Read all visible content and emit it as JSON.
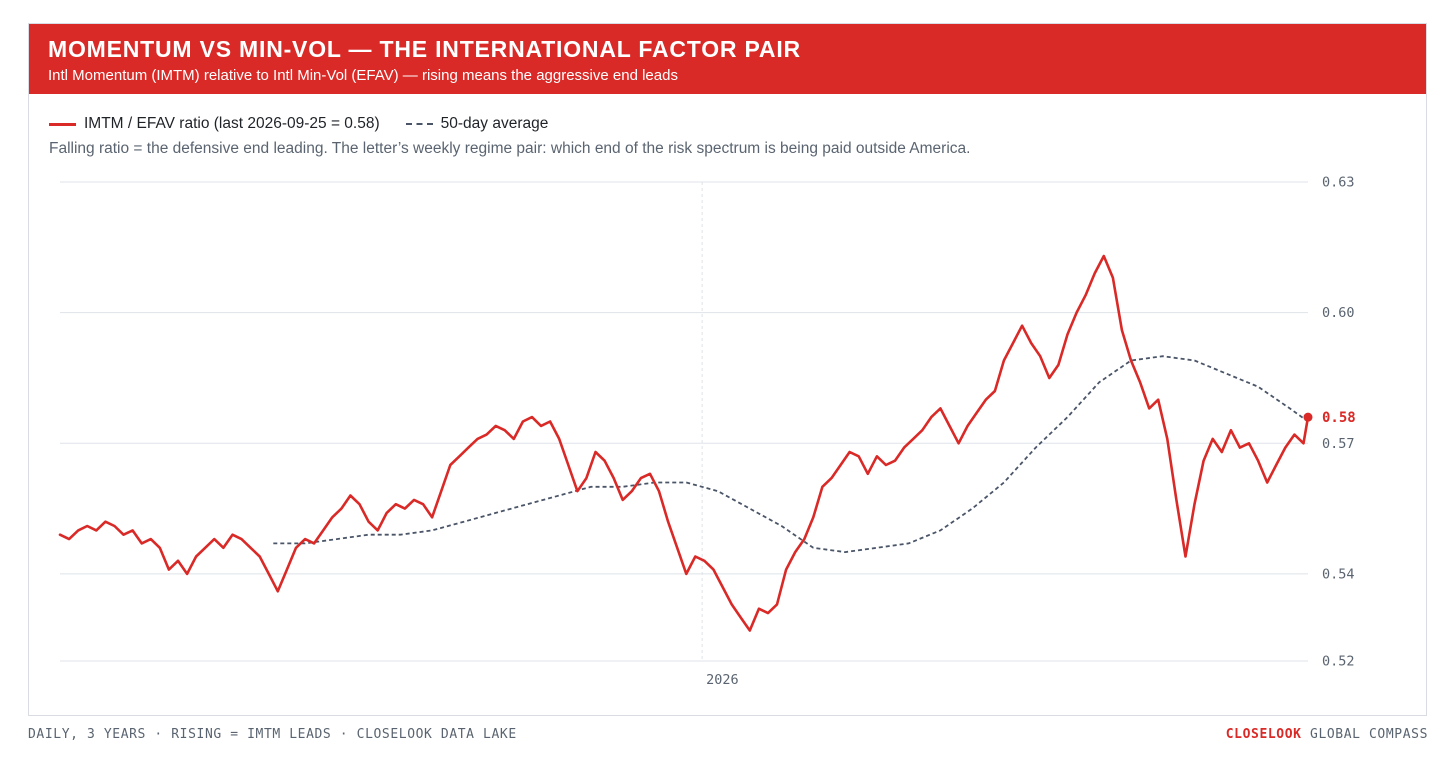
{
  "header": {
    "title": "MOMENTUM VS MIN-VOL — THE INTERNATIONAL FACTOR PAIR",
    "subtitle": "Intl Momentum (IMTM) relative to Intl Min-Vol (EFAV) — rising means the aggressive end leads"
  },
  "legend": {
    "ratio_label": "IMTM / EFAV ratio (last 2026-09-25 = 0.58)",
    "avg_label": "50-day average"
  },
  "note": "Falling ratio = the defensive end leading. The letter’s weekly regime pair: which end of the risk spectrum is being paid outside America.",
  "footer": {
    "left": "DAILY, 3 YEARS · RISING = IMTM LEADS · CLOSELOOK DATA LAKE",
    "brand": "CLOSELOOK",
    "right_rest": " GLOBAL COMPASS"
  },
  "colors": {
    "accent": "#d92a27",
    "average": "#4a5568",
    "grid": "#dfe3e8",
    "axis_text": "#5a6470"
  },
  "chart_data": {
    "type": "line",
    "title": "MOMENTUM VS MIN-VOL — THE INTERNATIONAL FACTOR PAIR",
    "xlabel": "",
    "ylabel": "",
    "ylim": [
      0.52,
      0.63
    ],
    "y_ticks": [
      0.52,
      0.54,
      0.57,
      0.6,
      0.63
    ],
    "y_tick_labels": [
      "0.52",
      "0.54",
      "0.57",
      "0.60",
      "0.63"
    ],
    "x_tick_label": "2026",
    "x_tick_date": "2026-01-01",
    "grid": true,
    "legend_position": "top-left",
    "last_value_label": "0.58",
    "series": [
      {
        "name": "IMTM / EFAV ratio (last 2026-09-25 = 0.58)",
        "style": "solid",
        "x": [
          "2025-03-24",
          "2025-03-28",
          "2025-04-01",
          "2025-04-05",
          "2025-04-09",
          "2025-04-13",
          "2025-04-17",
          "2025-04-21",
          "2025-04-25",
          "2025-04-29",
          "2025-05-03",
          "2025-05-07",
          "2025-05-11",
          "2025-05-15",
          "2025-05-19",
          "2025-05-23",
          "2025-05-27",
          "2025-05-31",
          "2025-06-04",
          "2025-06-08",
          "2025-06-12",
          "2025-06-16",
          "2025-06-20",
          "2025-06-24",
          "2025-06-28",
          "2025-07-02",
          "2025-07-06",
          "2025-07-10",
          "2025-07-14",
          "2025-07-18",
          "2025-07-22",
          "2025-07-26",
          "2025-07-30",
          "2025-08-03",
          "2025-08-07",
          "2025-08-11",
          "2025-08-15",
          "2025-08-19",
          "2025-08-23",
          "2025-08-27",
          "2025-08-31",
          "2025-09-04",
          "2025-09-08",
          "2025-09-12",
          "2025-09-16",
          "2025-09-20",
          "2025-09-24",
          "2025-09-28",
          "2025-10-02",
          "2025-10-06",
          "2025-10-10",
          "2025-10-14",
          "2025-10-18",
          "2025-10-22",
          "2025-10-26",
          "2025-10-30",
          "2025-11-03",
          "2025-11-07",
          "2025-11-11",
          "2025-11-15",
          "2025-11-19",
          "2025-11-23",
          "2025-11-27",
          "2025-12-01",
          "2025-12-05",
          "2025-12-09",
          "2025-12-13",
          "2025-12-17",
          "2025-12-21",
          "2025-12-25",
          "2025-12-29",
          "2026-01-02",
          "2026-01-06",
          "2026-01-10",
          "2026-01-14",
          "2026-01-18",
          "2026-01-22",
          "2026-01-26",
          "2026-01-30",
          "2026-02-03",
          "2026-02-07",
          "2026-02-11",
          "2026-02-15",
          "2026-02-19",
          "2026-02-23",
          "2026-02-27",
          "2026-03-03",
          "2026-03-07",
          "2026-03-11",
          "2026-03-15",
          "2026-03-19",
          "2026-03-23",
          "2026-03-27",
          "2026-03-31",
          "2026-04-04",
          "2026-04-08",
          "2026-04-12",
          "2026-04-16",
          "2026-04-20",
          "2026-04-24",
          "2026-04-28",
          "2026-05-02",
          "2026-05-06",
          "2026-05-10",
          "2026-05-14",
          "2026-05-18",
          "2026-05-22",
          "2026-05-26",
          "2026-05-30",
          "2026-06-03",
          "2026-06-07",
          "2026-06-11",
          "2026-06-15",
          "2026-06-19",
          "2026-06-23",
          "2026-06-27",
          "2026-07-01",
          "2026-07-05",
          "2026-07-09",
          "2026-07-13",
          "2026-07-17",
          "2026-07-21",
          "2026-07-25",
          "2026-07-29",
          "2026-08-02",
          "2026-08-06",
          "2026-08-10",
          "2026-08-14",
          "2026-08-18",
          "2026-08-22",
          "2026-08-26",
          "2026-08-30",
          "2026-09-03",
          "2026-09-07",
          "2026-09-11",
          "2026-09-15",
          "2026-09-19",
          "2026-09-23",
          "2026-09-25"
        ],
        "values": [
          0.549,
          0.548,
          0.55,
          0.551,
          0.55,
          0.552,
          0.551,
          0.549,
          0.55,
          0.547,
          0.548,
          0.546,
          0.541,
          0.543,
          0.54,
          0.544,
          0.546,
          0.548,
          0.546,
          0.549,
          0.548,
          0.546,
          0.544,
          0.54,
          0.536,
          0.541,
          0.546,
          0.548,
          0.547,
          0.55,
          0.553,
          0.555,
          0.558,
          0.556,
          0.552,
          0.55,
          0.554,
          0.556,
          0.555,
          0.557,
          0.556,
          0.553,
          0.559,
          0.565,
          0.567,
          0.569,
          0.571,
          0.572,
          0.574,
          0.573,
          0.571,
          0.575,
          0.576,
          0.574,
          0.575,
          0.571,
          0.565,
          0.559,
          0.562,
          0.568,
          0.566,
          0.562,
          0.557,
          0.559,
          0.562,
          0.563,
          0.559,
          0.552,
          0.546,
          0.54,
          0.544,
          0.543,
          0.541,
          0.537,
          0.533,
          0.53,
          0.527,
          0.532,
          0.531,
          0.533,
          0.541,
          0.545,
          0.548,
          0.553,
          0.56,
          0.562,
          0.565,
          0.568,
          0.567,
          0.563,
          0.567,
          0.565,
          0.566,
          0.569,
          0.571,
          0.573,
          0.576,
          0.578,
          0.574,
          0.57,
          0.574,
          0.577,
          0.58,
          0.582,
          0.589,
          0.593,
          0.597,
          0.593,
          0.59,
          0.585,
          0.588,
          0.595,
          0.6,
          0.604,
          0.609,
          0.613,
          0.608,
          0.596,
          0.589,
          0.584,
          0.578,
          0.58,
          0.571,
          0.557,
          0.544,
          0.556,
          0.566,
          0.571,
          0.568,
          0.573,
          0.569,
          0.57,
          0.566,
          0.561,
          0.565,
          0.569,
          0.572,
          0.57,
          0.576
        ],
        "color": "#d92a27"
      },
      {
        "name": "50-day average",
        "style": "dashed",
        "x": [
          "2025-06-26",
          "2025-07-10",
          "2025-07-24",
          "2025-08-07",
          "2025-08-21",
          "2025-09-04",
          "2025-09-18",
          "2025-10-02",
          "2025-10-16",
          "2025-10-30",
          "2025-11-13",
          "2025-11-27",
          "2025-12-11",
          "2025-12-25",
          "2026-01-08",
          "2026-01-22",
          "2026-02-05",
          "2026-02-19",
          "2026-03-05",
          "2026-03-19",
          "2026-04-02",
          "2026-04-16",
          "2026-04-30",
          "2026-05-14",
          "2026-05-28",
          "2026-06-11",
          "2026-06-25",
          "2026-07-09",
          "2026-07-23",
          "2026-08-06",
          "2026-08-20",
          "2026-09-03",
          "2026-09-17",
          "2026-09-25"
        ],
        "values": [
          0.547,
          0.547,
          0.548,
          0.549,
          0.549,
          0.55,
          0.552,
          0.554,
          0.556,
          0.558,
          0.56,
          0.56,
          0.561,
          0.561,
          0.559,
          0.555,
          0.551,
          0.546,
          0.545,
          0.546,
          0.547,
          0.55,
          0.555,
          0.561,
          0.569,
          0.576,
          0.584,
          0.589,
          0.59,
          0.589,
          0.586,
          0.583,
          0.578,
          0.575
        ],
        "color": "#4a5568"
      }
    ]
  }
}
